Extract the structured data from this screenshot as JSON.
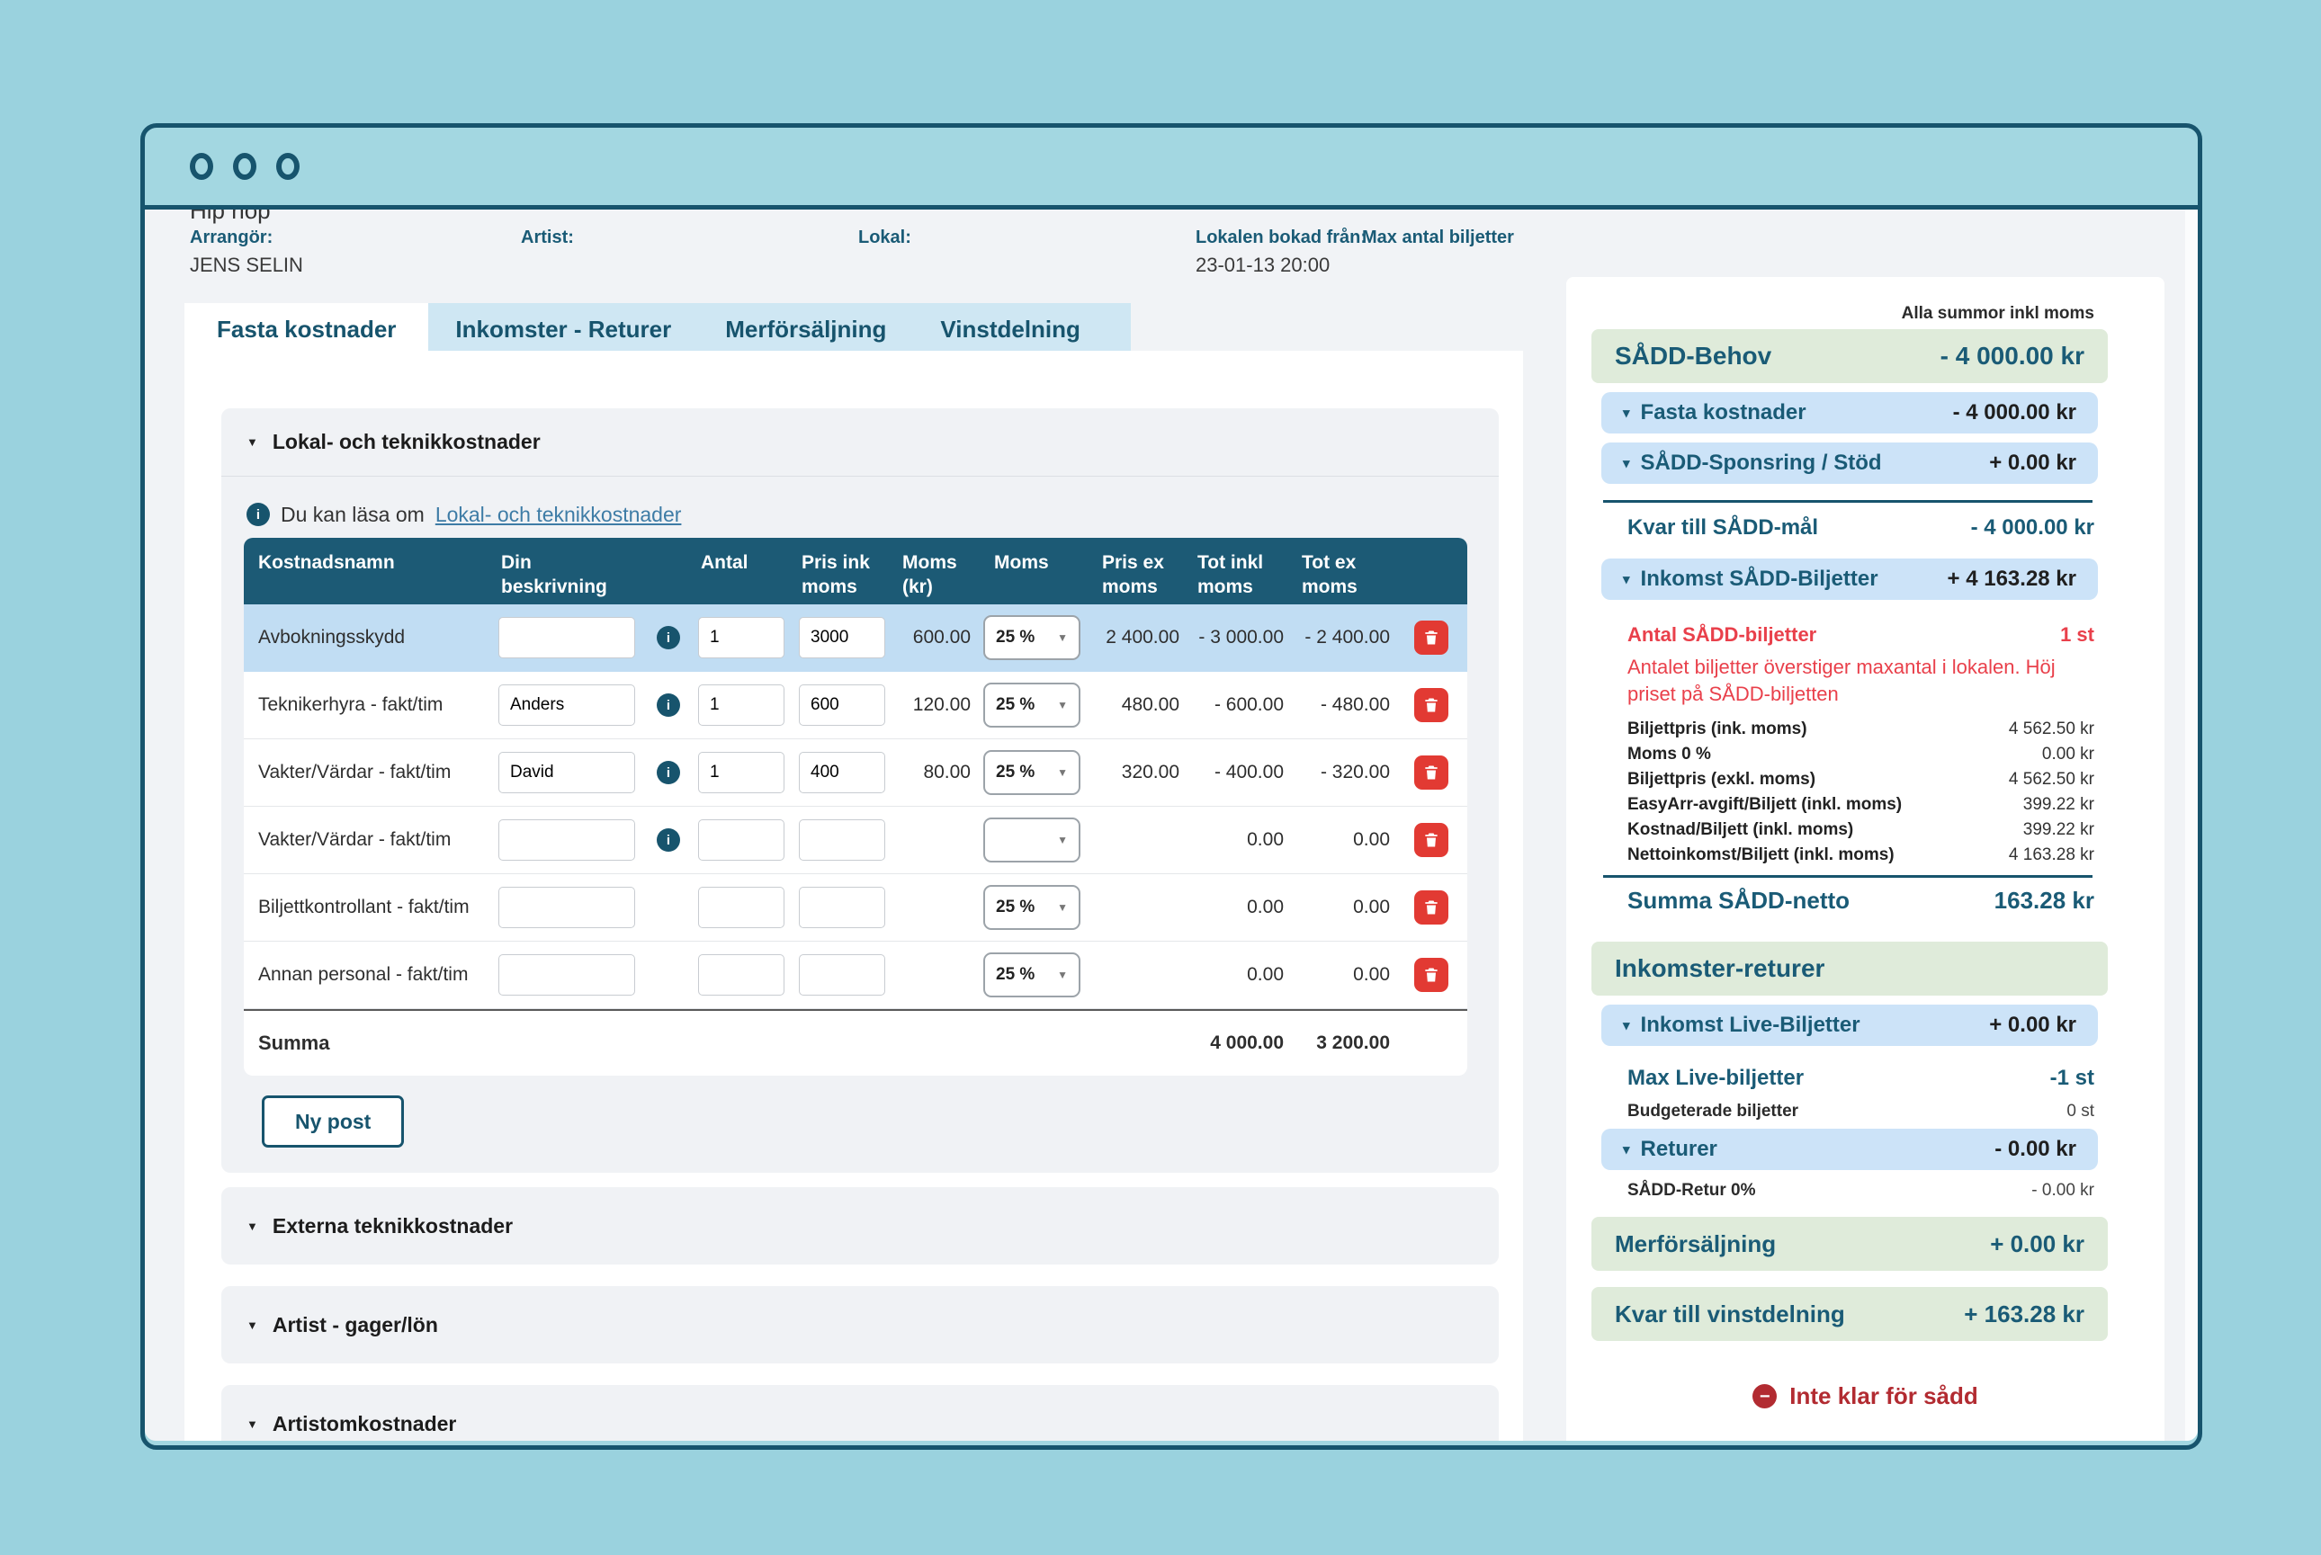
{
  "colors": {
    "page_bg": "#9AD2DE",
    "window_border": "#17546D",
    "content_bg": "#F1F3F6",
    "table_header_bg": "#1C5A75",
    "selected_row": "#C1DDF3",
    "tab_band": "#CFE7F3",
    "sidebar_blue": "#CCE3F8",
    "sidebar_green": "#DFEBDA",
    "danger_red": "#E23A33",
    "warning_red": "#E9404B",
    "status_red": "#B22B31",
    "link": "#3E7CA6",
    "teal_text": "#1A5B76"
  },
  "window": {
    "controls": [
      "circle",
      "circle",
      "circle"
    ]
  },
  "event": {
    "title": "Hip hop",
    "fields": [
      {
        "label": "Arrangör:",
        "value": "JENS SELIN"
      },
      {
        "label": "Artist:",
        "value": ""
      },
      {
        "label": "Lokal:",
        "value": ""
      },
      {
        "label": "Lokalen bokad från:",
        "value": "23-01-13 20:00"
      },
      {
        "label": "Max antal biljetter",
        "value": ""
      }
    ]
  },
  "tabs": [
    {
      "label": "Fasta kostnader",
      "active": true
    },
    {
      "label": "Inkomster - Returer",
      "active": false
    },
    {
      "label": "Merförsäljning",
      "active": false
    },
    {
      "label": "Vinstdelning",
      "active": false
    }
  ],
  "section": {
    "title": "Lokal- och teknikkostnader",
    "info_prefix": "Du kan läsa om",
    "info_link": "Lokal- och teknikkostnader",
    "new_post_label": "Ny post",
    "table": {
      "headers": [
        "Kostnadsnamn",
        "Din\nbeskrivning",
        "Antal",
        "Pris ink\nmoms",
        "Moms\n(kr)",
        "Moms",
        "Pris ex\nmoms",
        "Tot inkl\nmoms",
        "Tot ex\nmoms"
      ],
      "rows": [
        {
          "name": "Avbokningsskydd",
          "desc": "",
          "info": true,
          "antal": "1",
          "pris": "3000",
          "moms_kr": "600.00",
          "moms": "25 %",
          "pris_ex": "2 400.00",
          "tot_inkl": "- 3 000.00",
          "tot_ex": "- 2 400.00",
          "selected": true
        },
        {
          "name": "Teknikerhyra - fakt/tim",
          "desc": "Anders",
          "info": true,
          "antal": "1",
          "pris": "600",
          "moms_kr": "120.00",
          "moms": "25 %",
          "pris_ex": "480.00",
          "tot_inkl": "- 600.00",
          "tot_ex": "- 480.00",
          "selected": false
        },
        {
          "name": "Vakter/Värdar - fakt/tim",
          "desc": "David",
          "info": true,
          "antal": "1",
          "pris": "400",
          "moms_kr": "80.00",
          "moms": "25 %",
          "pris_ex": "320.00",
          "tot_inkl": "- 400.00",
          "tot_ex": "- 320.00",
          "selected": false
        },
        {
          "name": "Vakter/Värdar - fakt/tim",
          "desc": "",
          "info": true,
          "antal": "",
          "pris": "",
          "moms_kr": "",
          "moms": "",
          "pris_ex": "",
          "tot_inkl": "0.00",
          "tot_ex": "0.00",
          "selected": false
        },
        {
          "name": "Biljettkontrollant - fakt/tim",
          "desc": "",
          "info": false,
          "antal": "",
          "pris": "",
          "moms_kr": "",
          "moms": "25 %",
          "pris_ex": "",
          "tot_inkl": "0.00",
          "tot_ex": "0.00",
          "selected": false
        },
        {
          "name": "Annan personal - fakt/tim",
          "desc": "",
          "info": false,
          "antal": "",
          "pris": "",
          "moms_kr": "",
          "moms": "25 %",
          "pris_ex": "",
          "tot_inkl": "0.00",
          "tot_ex": "0.00",
          "selected": false
        }
      ],
      "summa": {
        "label": "Summa",
        "tot_inkl": "4 000.00",
        "tot_ex": "3 200.00"
      }
    }
  },
  "collapsed_sections": [
    "Externa teknikkostnader",
    "Artist - gager/lön",
    "Artistomkostnader"
  ],
  "sidebar": {
    "note": "Alla summor inkl moms",
    "sadd_behov": {
      "label": "SÅDD-Behov",
      "value": "- 4 000.00 kr"
    },
    "fasta_kostnader": {
      "label": "Fasta kostnader",
      "value": "- 4 000.00 kr"
    },
    "sponsring": {
      "label": "SÅDD-Sponsring / Stöd",
      "value": "+ 0.00 kr"
    },
    "kvar_sadd_mal": {
      "label": "Kvar till SÅDD-mål",
      "value": "- 4 000.00 kr"
    },
    "inkomst_sadd": {
      "label": "Inkomst SÅDD-Biljetter",
      "value": "+ 4 163.28 kr"
    },
    "antal_sadd": {
      "label": "Antal SÅDD-biljetter",
      "value": "1 st"
    },
    "warning": "Antalet biljetter överstiger maxantal i lokalen. Höj priset på SÅDD-biljetten",
    "detail_rows": [
      {
        "label": "Biljettpris (ink. moms)",
        "value": "4 562.50 kr"
      },
      {
        "label": "Moms 0 %",
        "value": "0.00 kr"
      },
      {
        "label": "Biljettpris (exkl. moms)",
        "value": "4 562.50 kr"
      },
      {
        "label": "EasyArr-avgift/Biljett (inkl. moms)",
        "value": "399.22 kr"
      },
      {
        "label": "Kostnad/Biljett (inkl. moms)",
        "value": "399.22 kr"
      },
      {
        "label": "Nettoinkomst/Biljett (inkl. moms)",
        "value": "4 163.28 kr"
      }
    ],
    "summa_netto": {
      "label": "Summa SÅDD-netto",
      "value": "163.28 kr"
    },
    "inkomster_returer": {
      "label": "Inkomster-returer"
    },
    "inkomst_live": {
      "label": "Inkomst Live-Biljetter",
      "value": "+ 0.00 kr"
    },
    "max_live": {
      "label": "Max Live-biljetter",
      "value": "-1 st"
    },
    "budgeterade": {
      "label": "Budgeterade biljetter",
      "value": "0 st"
    },
    "returer": {
      "label": "Returer",
      "value": "- 0.00 kr"
    },
    "sadd_retur": {
      "label": "SÅDD-Retur 0%",
      "value": "- 0.00 kr"
    },
    "merforsaljning": {
      "label": "Merförsäljning",
      "value": "+ 0.00 kr"
    },
    "kvar_vinst": {
      "label": "Kvar till vinstdelning",
      "value": "+ 163.28 kr"
    },
    "status": "Inte klar för sådd"
  }
}
